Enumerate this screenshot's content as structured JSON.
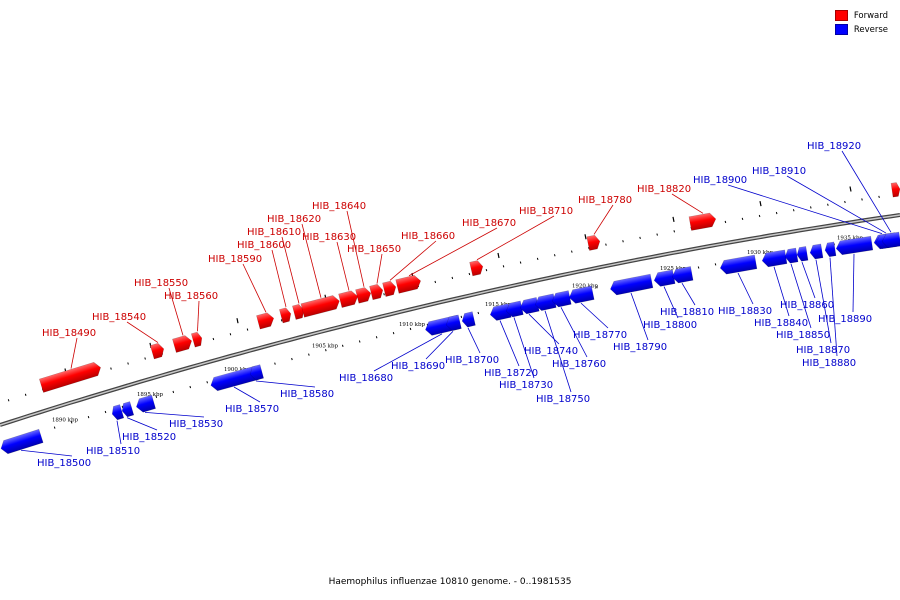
{
  "legend": {
    "forward_label": "Forward",
    "reverse_label": "Reverse",
    "forward_color": "#ff0000",
    "reverse_color": "#0000ff"
  },
  "caption": "Haemophilus influenzae 10810 genome. - 0..1981535",
  "kbp_ticks": [
    "1890 kbp",
    "1895 kbp",
    "1900 kbp",
    "1905 kbp",
    "1910 kbp",
    "1915 kbp",
    "1920 kbp",
    "1925 kbp",
    "1930 kbp",
    "1935 kbp"
  ],
  "forward_genes": [
    "HIB_18490",
    "HIB_18540",
    "HIB_18550",
    "HIB_18560",
    "HIB_18590",
    "HIB_18600",
    "HIB_18610",
    "HIB_18620",
    "HIB_18630",
    "HIB_18640",
    "HIB_18650",
    "HIB_18660",
    "HIB_18670",
    "HIB_18710",
    "HIB_18780",
    "HIB_18820"
  ],
  "reverse_genes": [
    "HIB_18500",
    "HIB_18510",
    "HIB_18520",
    "HIB_18530",
    "HIB_18570",
    "HIB_18580",
    "HIB_18680",
    "HIB_18690",
    "HIB_18700",
    "HIB_18720",
    "HIB_18730",
    "HIB_18740",
    "HIB_18750",
    "HIB_18760",
    "HIB_18770",
    "HIB_18790",
    "HIB_18800",
    "HIB_18810",
    "HIB_18830",
    "HIB_18840",
    "HIB_18850",
    "HIB_18860",
    "HIB_18870",
    "HIB_18880",
    "HIB_18890",
    "HIB_18900",
    "HIB_18910",
    "HIB_18920"
  ]
}
